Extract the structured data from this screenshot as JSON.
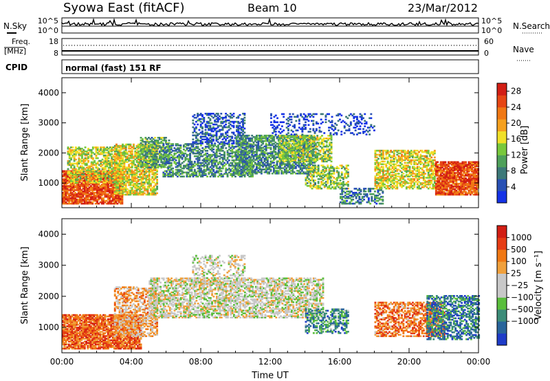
{
  "header": {
    "title": "Syowa East (fitACF)",
    "beam": "Beam 10",
    "date": "23/Mar/2012"
  },
  "panels": {
    "nsky_label": "N.Sky",
    "nsky_top": "10^5",
    "nsky_bottom": "10^0",
    "nsearch_label": "N.Search",
    "nsearch_top": "10^5",
    "nsearch_bottom": "10^0",
    "freq_label_1": "Freq.",
    "freq_label_2": "[MHz]",
    "freq_top": "18",
    "freq_bottom": "8",
    "nave_label": "Nave",
    "nave_top": "60",
    "nave_bottom": "0",
    "cpid_label": "CPID",
    "cpid_value": "normal (fast) 151 RF"
  },
  "colors": {
    "power_scale": [
      "#1432e6",
      "#2850b4",
      "#3c7878",
      "#4ea05a",
      "#78c83c",
      "#f0e028",
      "#f5a01e",
      "#f07814",
      "#e64614",
      "#d21e14"
    ],
    "velocity_scale": [
      "#1e3cc8",
      "#28649b",
      "#3c8c78",
      "#5abe3c",
      "#c8c8c8",
      "#c8c8c8",
      "#f0a03c",
      "#f07814",
      "#e63c14",
      "#d21e14"
    ]
  },
  "chart_data": [
    {
      "type": "heatmap",
      "name": "power",
      "ylabel": "Slant Range [km]",
      "yticks": [
        "1000",
        "2000",
        "3000",
        "4000"
      ],
      "ylim": [
        180,
        4500
      ],
      "xticks": [
        "00:00",
        "04:00",
        "08:00",
        "12:00",
        "16:00",
        "20:00",
        "00:00"
      ],
      "xlim_hours": [
        0,
        24
      ],
      "colorbar": {
        "label": "Power [dB]",
        "ticks": [
          "4",
          "8",
          "12",
          "16",
          "20",
          "24",
          "28"
        ],
        "range": [
          0,
          30
        ]
      },
      "regions": [
        {
          "t0": 0.0,
          "t1": 3.5,
          "r0": 300,
          "r1": 1400,
          "level": 0.85,
          "density": 0.85
        },
        {
          "t0": 0.3,
          "t1": 3.5,
          "r0": 1000,
          "r1": 2200,
          "level": 0.5,
          "density": 0.6
        },
        {
          "t0": 3.0,
          "t1": 5.5,
          "r0": 600,
          "r1": 2300,
          "level": 0.55,
          "density": 0.7
        },
        {
          "t0": 4.5,
          "t1": 6.2,
          "r0": 1500,
          "r1": 2500,
          "level": 0.35,
          "density": 0.6
        },
        {
          "t0": 5.8,
          "t1": 11.0,
          "r0": 1200,
          "r1": 2300,
          "level": 0.3,
          "density": 0.55
        },
        {
          "t0": 7.5,
          "t1": 10.5,
          "r0": 2300,
          "r1": 3300,
          "level": 0.15,
          "density": 0.45
        },
        {
          "t0": 10.0,
          "t1": 14.5,
          "r0": 1300,
          "r1": 2600,
          "level": 0.3,
          "density": 0.65
        },
        {
          "t0": 12.5,
          "t1": 15.5,
          "r0": 1700,
          "r1": 2600,
          "level": 0.45,
          "density": 0.6
        },
        {
          "t0": 14.0,
          "t1": 16.5,
          "r0": 800,
          "r1": 1600,
          "level": 0.45,
          "density": 0.55
        },
        {
          "t0": 16.0,
          "t1": 18.5,
          "r0": 300,
          "r1": 800,
          "level": 0.25,
          "density": 0.45
        },
        {
          "t0": 18.0,
          "t1": 21.5,
          "r0": 800,
          "r1": 2100,
          "level": 0.55,
          "density": 0.6
        },
        {
          "t0": 21.5,
          "t1": 24.0,
          "r0": 600,
          "r1": 1700,
          "level": 0.85,
          "density": 0.85
        },
        {
          "t0": 12.0,
          "t1": 18.0,
          "r0": 2600,
          "r1": 3300,
          "level": 0.1,
          "density": 0.25
        }
      ]
    },
    {
      "type": "heatmap",
      "name": "velocity",
      "ylabel": "Slant Range [km]",
      "yticks": [
        "1000",
        "2000",
        "3000",
        "4000"
      ],
      "ylim": [
        180,
        4500
      ],
      "xticks": [
        "00:00",
        "04:00",
        "08:00",
        "12:00",
        "16:00",
        "20:00",
        "00:00"
      ],
      "xlabel": "Time UT",
      "xlim_hours": [
        0,
        24
      ],
      "colorbar": {
        "label": "Velocity [m s⁻¹]",
        "ticks": [
          "1000",
          "500",
          "100",
          "25",
          "−25",
          "−100",
          "−500",
          "−1000"
        ]
      },
      "regions": [
        {
          "t0": 0.0,
          "t1": 4.5,
          "r0": 300,
          "r1": 1400,
          "level": 0.78,
          "density": 0.85
        },
        {
          "t0": 3.0,
          "t1": 5.5,
          "r0": 700,
          "r1": 2300,
          "level": 0.65,
          "density": 0.55
        },
        {
          "t0": 5.0,
          "t1": 15.0,
          "r0": 1300,
          "r1": 2600,
          "level": 0.5,
          "density": 0.6
        },
        {
          "t0": 7.5,
          "t1": 10.5,
          "r0": 2300,
          "r1": 3300,
          "level": 0.5,
          "density": 0.35
        },
        {
          "t0": 14.0,
          "t1": 16.5,
          "r0": 800,
          "r1": 1600,
          "level": 0.25,
          "density": 0.5
        },
        {
          "t0": 18.0,
          "t1": 22.0,
          "r0": 700,
          "r1": 1800,
          "level": 0.75,
          "density": 0.6
        },
        {
          "t0": 21.0,
          "t1": 24.0,
          "r0": 600,
          "r1": 2000,
          "level": 0.2,
          "density": 0.55
        }
      ]
    }
  ]
}
